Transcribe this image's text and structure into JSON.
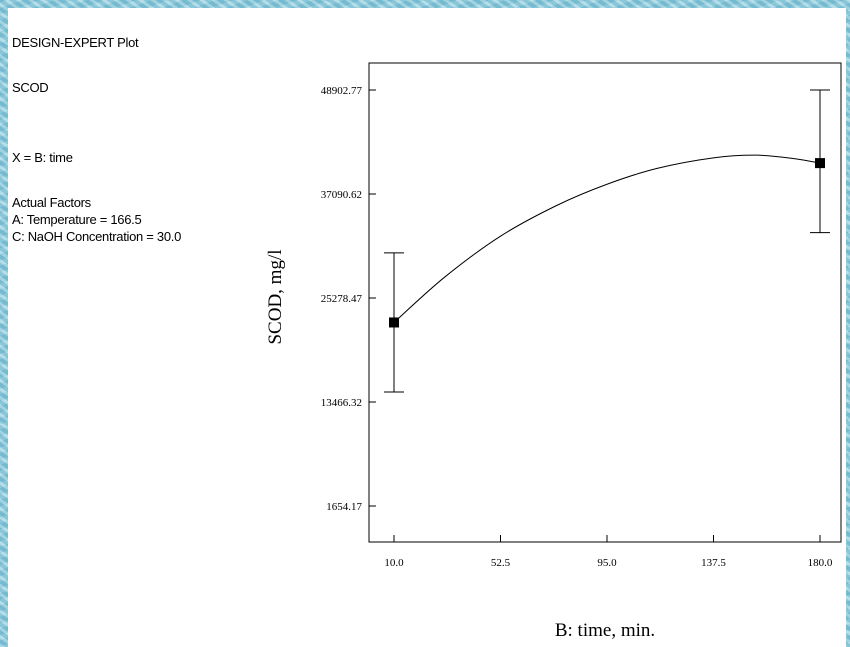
{
  "header": {
    "software": "DESIGN-EXPERT Plot",
    "response": "SCOD",
    "x_factor": "X = B: time",
    "actual_factors_heading": "Actual Factors",
    "factor_a": "A: Temperature = 166.5",
    "factor_c": "C: NaOH Concentration = 30.0"
  },
  "chart_data": {
    "type": "line",
    "xlabel": "B: time, min.",
    "ylabel": "SCOD, mg/l",
    "xlim": [
      10.0,
      180.0
    ],
    "ylim": [
      1654.17,
      48902.77
    ],
    "x_ticks": [
      "10.0",
      "52.5",
      "95.0",
      "137.5",
      "180.0"
    ],
    "y_ticks": [
      "1654.17",
      "13466.32",
      "25278.47",
      "37090.62",
      "48902.77"
    ],
    "curve": {
      "x": [
        10,
        30,
        52.5,
        75,
        95,
        115,
        137.5,
        155,
        170,
        180
      ],
      "y": [
        22500,
        27600,
        32300,
        35800,
        38200,
        40000,
        41200,
        41500,
        41100,
        40600
      ]
    },
    "points": [
      {
        "x": 10.0,
        "y": 22500,
        "err_low": 14600,
        "err_high": 30400
      },
      {
        "x": 180.0,
        "y": 40600,
        "err_low": 32700,
        "err_high": 48900
      }
    ]
  }
}
